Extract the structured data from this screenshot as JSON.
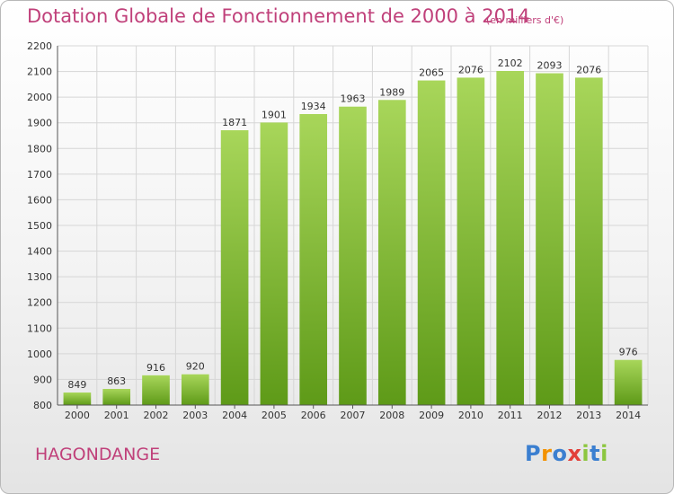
{
  "header": {
    "title": "Dotation Globale de Fonctionnement de 2000 à 2014",
    "unit_note": "(en milliers d'€)"
  },
  "footer": {
    "commune": "HAGONDANGE",
    "logo": {
      "p": "P",
      "r": "r",
      "o": "o",
      "x": "x",
      "i1": "i",
      "t": "t",
      "i2": "i"
    }
  },
  "colors": {
    "title": "#c0407a",
    "bar_top": "#a8d65a",
    "bar_bottom": "#5e9a18",
    "grid": "#d6d6d6",
    "axis_text": "#333333",
    "logo_p": "#3b7fd0",
    "logo_r": "#f39200",
    "logo_o": "#3b7fd0",
    "logo_x": "#e2403a",
    "logo_i": "#8cc63f",
    "logo_t": "#3b7fd0"
  },
  "chart_data": {
    "type": "bar",
    "title": "Dotation Globale de Fonctionnement de 2000 à 2014",
    "subtitle": "(en milliers d'€)",
    "categories": [
      "2000",
      "2001",
      "2002",
      "2003",
      "2004",
      "2005",
      "2006",
      "2007",
      "2008",
      "2009",
      "2010",
      "2011",
      "2012",
      "2013",
      "2014"
    ],
    "values": [
      849,
      863,
      916,
      920,
      1871,
      1901,
      1934,
      1963,
      1989,
      2065,
      2076,
      2102,
      2093,
      2076,
      976
    ],
    "xlabel": "",
    "ylabel": "",
    "ylim": [
      800,
      2200
    ],
    "yticks": [
      800,
      900,
      1000,
      1100,
      1200,
      1300,
      1400,
      1500,
      1600,
      1700,
      1800,
      1900,
      2000,
      2100,
      2200
    ],
    "grid": true,
    "legend": "none"
  }
}
